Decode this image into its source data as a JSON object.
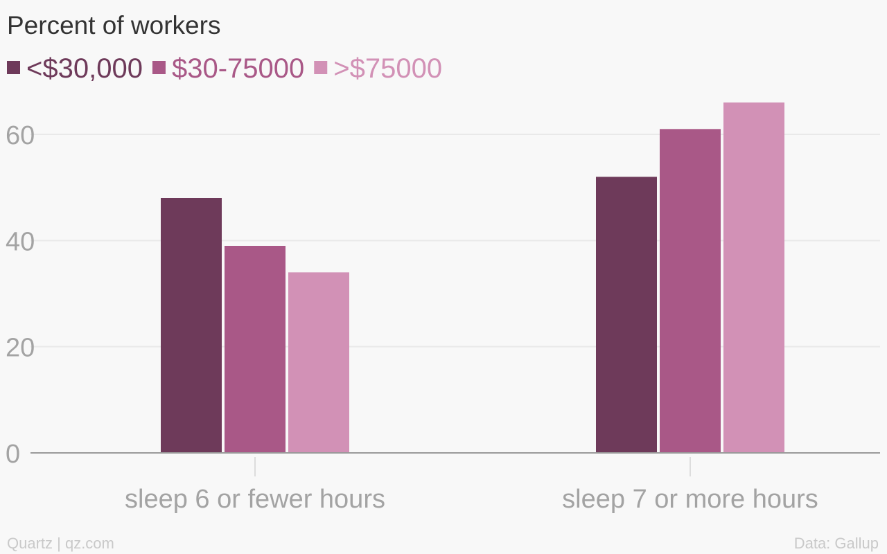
{
  "colors": {
    "background": "#f8f8f8",
    "title": "#333333",
    "axis_text": "#a3a3a3",
    "footer_text": "#c9c9c9",
    "gridline": "#e9e9e9",
    "baseline": "#9a9a9a"
  },
  "footer": {
    "source_left": "Quartz | qz.com",
    "source_right": "Data: Gallup"
  },
  "chart_data": {
    "type": "bar",
    "title": "Percent of workers",
    "xlabel": "",
    "ylabel": "",
    "categories": [
      "sleep 6 or fewer hours",
      "sleep 7 or more hours"
    ],
    "series": [
      {
        "name": "<$30,000",
        "color": "#6e3a5a",
        "values": [
          48,
          52
        ]
      },
      {
        "name": "$30-75000",
        "color": "#a95887",
        "values": [
          39,
          61
        ]
      },
      {
        "name": ">$75000",
        "color": "#d291b6",
        "values": [
          34,
          66
        ]
      }
    ],
    "ylim": [
      0,
      66
    ],
    "yticks": [
      0,
      20,
      40,
      60
    ],
    "grid": true,
    "legend_position": "top-left"
  }
}
